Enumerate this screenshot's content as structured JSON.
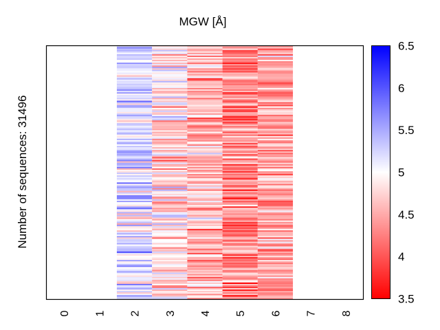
{
  "chart_data": {
    "type": "heatmap",
    "title": "MGW [Å]",
    "xlabel": "",
    "ylabel": "Number of sequences: 31496",
    "num_sequences": 31496,
    "x_tick_labels": [
      "0",
      "1",
      "2",
      "3",
      "4",
      "5",
      "6",
      "7",
      "8"
    ],
    "x_positions": [
      0,
      1,
      2,
      3,
      4,
      5,
      6,
      7,
      8
    ],
    "columns_with_data": [
      2,
      3,
      4,
      5,
      6
    ],
    "column_mean_estimates": [
      {
        "position": 2,
        "mean": 5.2
      },
      {
        "position": 3,
        "mean": 4.8
      },
      {
        "position": 4,
        "mean": 4.6
      },
      {
        "position": 5,
        "mean": 4.3
      },
      {
        "position": 6,
        "mean": 4.4
      }
    ],
    "colorbar": {
      "min": 3.5,
      "max": 6.5,
      "center": 5,
      "ticks": [
        "3.5",
        "4",
        "4.5",
        "5",
        "5.5",
        "6",
        "6.5"
      ],
      "colormap": "bwr",
      "low_color": "#ff0000",
      "mid_color": "#ffffff",
      "high_color": "#0000ff"
    },
    "grid": false
  }
}
